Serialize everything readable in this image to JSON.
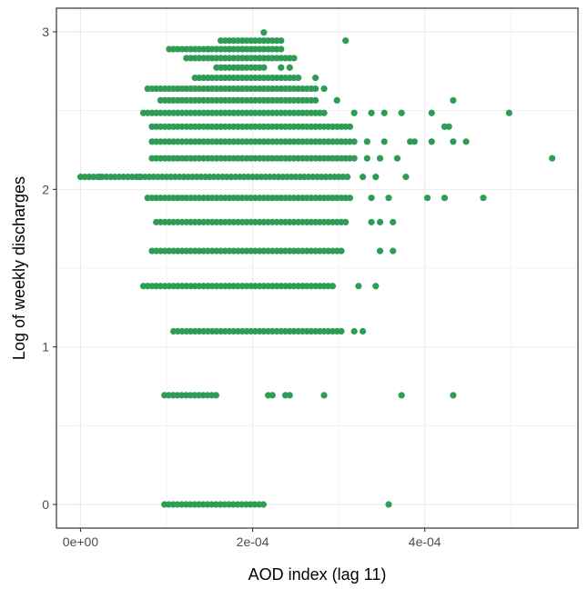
{
  "chart_data": {
    "type": "scatter",
    "xlabel": "AOD index (lag 11)",
    "ylabel": "Log of weekly discharges",
    "xlim": [
      -2.8e-05,
      0.000578
    ],
    "ylim": [
      -0.15,
      3.15
    ],
    "x_ticks": [
      0,
      0.0002,
      0.0004
    ],
    "x_tick_labels": [
      "0e+00",
      "2e-04",
      "4e-04"
    ],
    "y_ticks": [
      0,
      1,
      2,
      3
    ],
    "y_tick_labels": [
      "0",
      "1",
      "2",
      "3"
    ],
    "grid": true,
    "point_color": "#2e9c55",
    "panel_border_color": "#333333",
    "grid_color": "#ebebeb",
    "levels": [
      {
        "y": 0,
        "x_min": 9.75e-05,
        "x_max": 0.000213,
        "extra_x": [
          0.000358
        ]
      },
      {
        "y": 0.693,
        "x_min": 9.75e-05,
        "x_max": 0.000158,
        "extra_x": [
          0.000218,
          0.000223,
          0.000238,
          0.000243,
          0.000283,
          0.000373,
          0.000433
        ]
      },
      {
        "y": 1.099,
        "x_min": 0.000108,
        "x_max": 0.000303,
        "extra_x": [
          0.000318,
          0.000328
        ]
      },
      {
        "y": 1.386,
        "x_min": 7.3e-05,
        "x_max": 0.000293,
        "extra_x": [
          0.000323,
          0.000343
        ]
      },
      {
        "y": 1.609,
        "x_min": 8.3e-05,
        "x_max": 0.000303,
        "extra_x": [
          0.000348,
          0.000363
        ]
      },
      {
        "y": 1.792,
        "x_min": 8.8e-05,
        "x_max": 0.000308,
        "extra_x": [
          0.000338,
          0.000348,
          0.000363
        ]
      },
      {
        "y": 1.946,
        "x_min": 7.8e-05,
        "x_max": 0.000313,
        "extra_x": [
          0.000338,
          0.000358,
          0.000403,
          0.000423,
          0.000468
        ]
      },
      {
        "y": 2.079,
        "x_min": 0,
        "x_max": 0.000313,
        "extra_x": [
          2.25e-05,
          6.8e-05,
          0.000328,
          0.000343,
          0.000378
        ]
      },
      {
        "y": 2.197,
        "x_min": 8.3e-05,
        "x_max": 0.000318,
        "extra_x": [
          0.000333,
          0.000348,
          0.000368,
          0.000548
        ]
      },
      {
        "y": 2.303,
        "x_min": 8.3e-05,
        "x_max": 0.000318,
        "extra_x": [
          0.000333,
          0.000353,
          0.000383,
          0.000388,
          0.000408,
          0.000433,
          0.000448
        ]
      },
      {
        "y": 2.398,
        "x_min": 8.3e-05,
        "x_max": 0.000313,
        "extra_x": [
          0.000428,
          0.000423
        ]
      },
      {
        "y": 2.485,
        "x_min": 7.3e-05,
        "x_max": 0.000283,
        "extra_x": [
          0.000318,
          0.000338,
          0.000353,
          0.000373,
          0.000408,
          0.000498
        ]
      },
      {
        "y": 2.565,
        "x_min": 9.3e-05,
        "x_max": 0.000273,
        "extra_x": [
          0.000298,
          0.000433
        ]
      },
      {
        "y": 2.639,
        "x_min": 7.8e-05,
        "x_max": 0.000273,
        "extra_x": [
          0.000283
        ]
      },
      {
        "y": 2.708,
        "x_min": 0.000133,
        "x_max": 0.000253,
        "extra_x": [
          0.000273
        ]
      },
      {
        "y": 2.773,
        "x_min": 0.000158,
        "x_max": 0.000213,
        "extra_x": [
          0.000233,
          0.000243
        ]
      },
      {
        "y": 2.833,
        "x_min": 0.000123,
        "x_max": 0.000248,
        "extra_x": [
          0.000208
        ]
      },
      {
        "y": 2.89,
        "x_min": 0.000103,
        "x_max": 0.000233,
        "extra_x": [
          0.000148,
          0.000173,
          0.000188
        ]
      },
      {
        "y": 2.944,
        "x_min": 0.000163,
        "x_max": 0.000233,
        "extra_x": [
          0.000308
        ]
      },
      {
        "y": 2.996,
        "x_min": 0.000213,
        "x_max": 0.000213,
        "extra_x": []
      }
    ]
  }
}
